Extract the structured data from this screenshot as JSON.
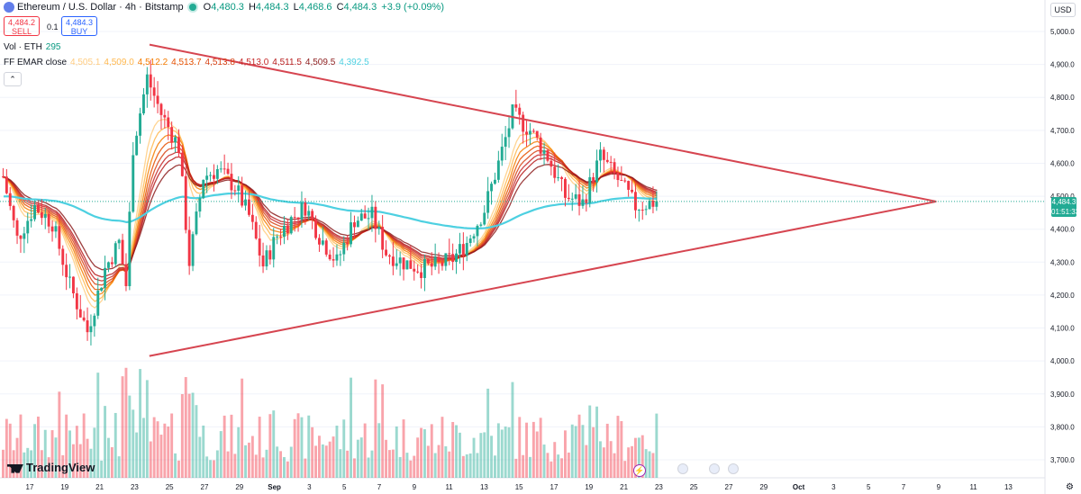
{
  "header": {
    "symbol": "Ethereum / U.S. Dollar · 4h · Bitstamp",
    "o_label": "O",
    "o": "4,480.3",
    "h_label": "H",
    "h": "4,484.3",
    "l_label": "L",
    "l": "4,468.6",
    "c_label": "C",
    "c": "4,484.3",
    "change": "+3.9 (+0.09%)"
  },
  "trade": {
    "sell_price": "4,484.2",
    "sell_label": "SELL",
    "spread": "0.1",
    "buy_price": "4,484.3",
    "buy_label": "BUY"
  },
  "volume_legend": {
    "label": "Vol · ETH",
    "value": "295"
  },
  "ema_legend": {
    "label": "FF EMAR close",
    "values": [
      "4,505.1",
      "4,509.0",
      "4,512.2",
      "4,513.7",
      "4,513.8",
      "4,513.0",
      "4,511.5",
      "4,509.5",
      "4,392.5"
    ],
    "colors": [
      "#ffcc80",
      "#ffb74d",
      "#f57c00",
      "#e65100",
      "#d84315",
      "#c62828",
      "#b71c1c",
      "#8d1f1f",
      "#4dd0e1"
    ]
  },
  "collapse_icon": "chevron-up",
  "currency": "USD",
  "last_price": {
    "value": "4,484.3",
    "countdown": "01:51:33"
  },
  "brand": "TradingView",
  "colors": {
    "up": "#22ab94",
    "down": "#f23645",
    "trendline": "#d64550",
    "ema_long": "#4dd0e1"
  },
  "chart_data": {
    "type": "candlestick",
    "symbol": "ETHUSD",
    "timeframe": "4h",
    "ylim": [
      3660,
      5050
    ],
    "y_ticks": [
      "5,000.0",
      "4,900.0",
      "4,800.0",
      "4,700.0",
      "4,600.0",
      "4,500.0",
      "4,400.0",
      "4,300.0",
      "4,200.0",
      "4,100.0",
      "4,000.0",
      "3,900.0",
      "3,800.0",
      "3,700.0"
    ],
    "x_ticks": [
      "17",
      "19",
      "21",
      "23",
      "25",
      "27",
      "29",
      "Sep",
      "3",
      "5",
      "7",
      "9",
      "11",
      "13",
      "15",
      "17",
      "19",
      "21",
      "23",
      "25",
      "27",
      "29",
      "Oct",
      "3",
      "5",
      "7",
      "9",
      "11",
      "13"
    ],
    "price_anchors": [
      [
        0,
        4560
      ],
      [
        4,
        4370
      ],
      [
        9,
        4470
      ],
      [
        14,
        4420
      ],
      [
        19,
        4230
      ],
      [
        24,
        4090
      ],
      [
        29,
        4280
      ],
      [
        33,
        4360
      ],
      [
        35,
        4230
      ],
      [
        37,
        4650
      ],
      [
        41,
        4860
      ],
      [
        45,
        4750
      ],
      [
        50,
        4650
      ],
      [
        53,
        4300
      ],
      [
        57,
        4560
      ],
      [
        61,
        4580
      ],
      [
        66,
        4530
      ],
      [
        70,
        4440
      ],
      [
        74,
        4290
      ],
      [
        78,
        4380
      ],
      [
        82,
        4430
      ],
      [
        86,
        4470
      ],
      [
        90,
        4380
      ],
      [
        95,
        4300
      ],
      [
        100,
        4430
      ],
      [
        105,
        4440
      ],
      [
        109,
        4330
      ],
      [
        114,
        4300
      ],
      [
        119,
        4280
      ],
      [
        124,
        4290
      ],
      [
        128,
        4310
      ],
      [
        132,
        4360
      ],
      [
        137,
        4460
      ],
      [
        141,
        4600
      ],
      [
        145,
        4750
      ],
      [
        150,
        4700
      ],
      [
        155,
        4620
      ],
      [
        160,
        4500
      ],
      [
        165,
        4480
      ],
      [
        170,
        4620
      ],
      [
        175,
        4550
      ],
      [
        180,
        4470
      ],
      [
        186,
        4484
      ]
    ],
    "trendlines": [
      {
        "from": [
          0,
          4960
        ],
        "to": [
          266,
          4484
        ]
      },
      {
        "from": [
          42,
          4015
        ],
        "to": [
          266,
          4484
        ]
      }
    ],
    "ema_series_last": [
      "4,505.1",
      "4,509.0",
      "4,512.2",
      "4,513.7",
      "4,513.8",
      "4,513.0",
      "4,511.5",
      "4,509.5",
      "4,392.5"
    ]
  }
}
